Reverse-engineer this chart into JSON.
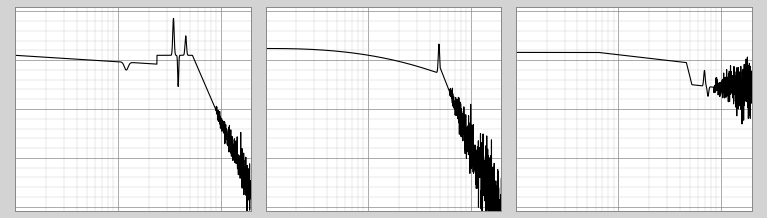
{
  "fig_width": 7.67,
  "fig_height": 2.18,
  "dpi": 100,
  "bg_color": "#d3d3d3",
  "panel_bg": "#ffffff",
  "line_color": "#000000",
  "line_width": 0.8,
  "major_grid_color": "#888888",
  "minor_grid_color": "#cccccc",
  "major_grid_lw": 0.5,
  "minor_grid_lw": 0.3
}
